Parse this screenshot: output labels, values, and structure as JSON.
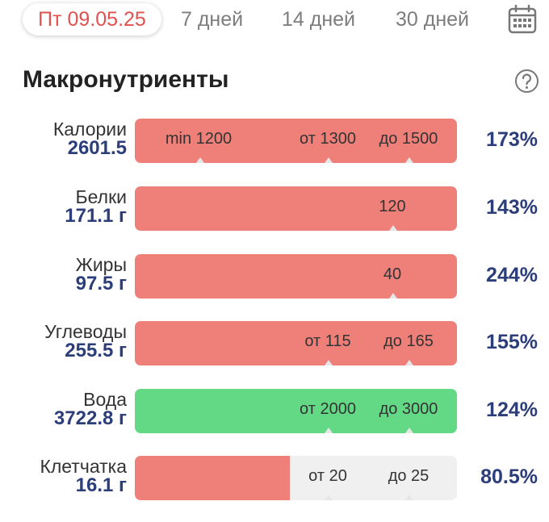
{
  "header": {
    "date_tab": "Пт 09.05.25",
    "tab_7": "7 дней",
    "tab_14": "14 дней",
    "tab_30": "30 дней"
  },
  "section": {
    "title": "Макронутриенты"
  },
  "colors": {
    "over": "#ef7f79",
    "ok": "#63d986",
    "track": "#f0f0f0",
    "value_text": "#2c3e7a",
    "active_tab": "#e2514f"
  },
  "icons": {
    "calendar": "calendar-icon",
    "help": "question-circle-icon"
  },
  "nutrients": [
    {
      "name": "Калории",
      "value": "2601.5",
      "percent": "173%",
      "fill": 1.0,
      "status": "over",
      "markers": [
        {
          "label": "min 1200"
        },
        {
          "label": "от 1300"
        },
        {
          "label": "до 1500"
        }
      ]
    },
    {
      "name": "Белки",
      "value": "171.1 г",
      "percent": "143%",
      "fill": 1.0,
      "status": "over",
      "markers": [
        {
          "label": "120"
        }
      ]
    },
    {
      "name": "Жиры",
      "value": "97.5 г",
      "percent": "244%",
      "fill": 1.0,
      "status": "over",
      "markers": [
        {
          "label": "40"
        }
      ]
    },
    {
      "name": "Углеводы",
      "value": "255.5 г",
      "percent": "155%",
      "fill": 1.0,
      "status": "over",
      "markers": [
        {
          "label": "от 115"
        },
        {
          "label": "до 165"
        }
      ]
    },
    {
      "name": "Вода",
      "value": "3722.8 г",
      "percent": "124%",
      "fill": 1.0,
      "status": "ok",
      "markers": [
        {
          "label": "от 2000"
        },
        {
          "label": "до 3000"
        }
      ]
    },
    {
      "name": "Клетчатка",
      "value": "16.1 г",
      "percent": "80.5%",
      "fill": 0.48,
      "status": "over",
      "markers": [
        {
          "label": "от 20"
        },
        {
          "label": "до 25"
        }
      ]
    }
  ]
}
